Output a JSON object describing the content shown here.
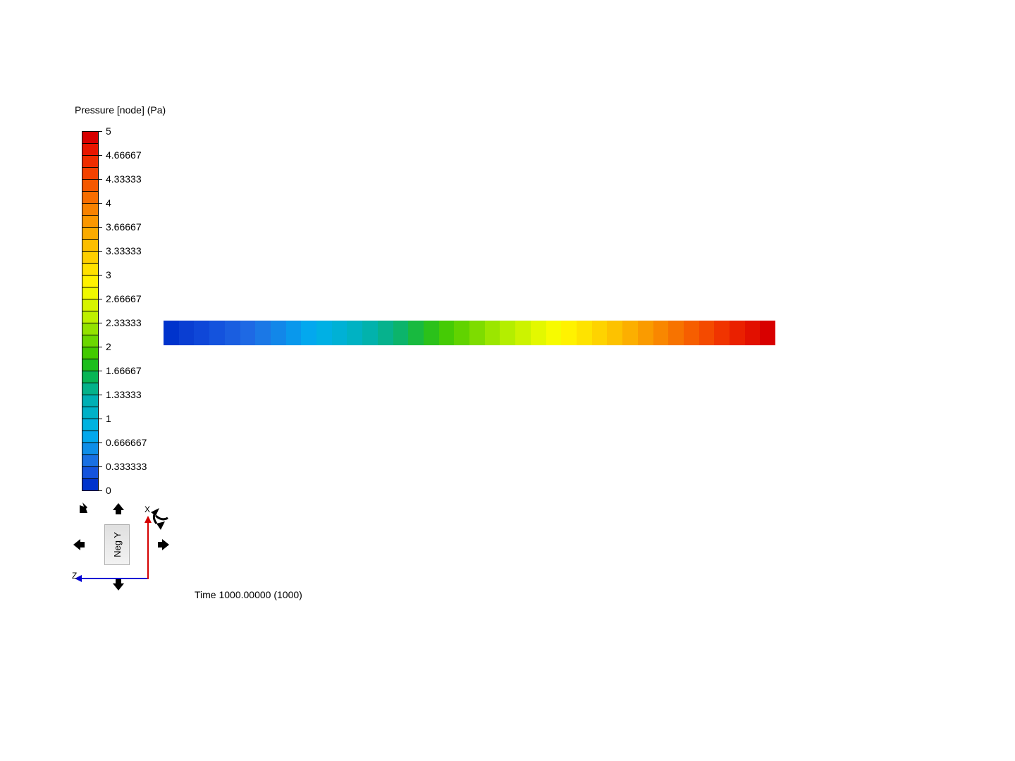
{
  "title": "Pressure [node] (Pa)",
  "legend": {
    "cells": [
      {
        "color": "#d80000"
      },
      {
        "color": "#e81600"
      },
      {
        "color": "#ef2d00"
      },
      {
        "color": "#f44200"
      },
      {
        "color": "#f55800"
      },
      {
        "color": "#f76d00"
      },
      {
        "color": "#f88200"
      },
      {
        "color": "#fb9700"
      },
      {
        "color": "#fbab00"
      },
      {
        "color": "#fcbe00"
      },
      {
        "color": "#fecf00"
      },
      {
        "color": "#ffe100"
      },
      {
        "color": "#fff200"
      },
      {
        "color": "#eff900"
      },
      {
        "color": "#d7f400"
      },
      {
        "color": "#bef000"
      },
      {
        "color": "#93e200"
      },
      {
        "color": "#6bd700"
      },
      {
        "color": "#42ca00"
      },
      {
        "color": "#1dbe1d"
      },
      {
        "color": "#08b555"
      },
      {
        "color": "#04b28a"
      },
      {
        "color": "#00b0b4"
      },
      {
        "color": "#00b1c7"
      },
      {
        "color": "#00b2e0"
      },
      {
        "color": "#03a8ec"
      },
      {
        "color": "#0e8ee8"
      },
      {
        "color": "#1970e3"
      },
      {
        "color": "#1453dd"
      },
      {
        "color": "#0033cc"
      }
    ],
    "ticks": [
      {
        "label": "5"
      },
      {
        "label": "4.66667"
      },
      {
        "label": "4.33333"
      },
      {
        "label": "4"
      },
      {
        "label": "3.66667"
      },
      {
        "label": "3.33333"
      },
      {
        "label": "3"
      },
      {
        "label": "2.66667"
      },
      {
        "label": "2.33333"
      },
      {
        "label": "2"
      },
      {
        "label": "1.66667"
      },
      {
        "label": "1.33333"
      },
      {
        "label": "1"
      },
      {
        "label": "0.666667"
      },
      {
        "label": "0.333333"
      },
      {
        "label": "0"
      }
    ]
  },
  "strip_colors": [
    "#0033cc",
    "#0a3ed2",
    "#0f47d8",
    "#1453dd",
    "#1a5ee0",
    "#1e69e4",
    "#1b78e6",
    "#1287e9",
    "#0998ec",
    "#03a8ee",
    "#00b0e4",
    "#00b1d5",
    "#00b2c3",
    "#02b2ac",
    "#06b28d",
    "#0cb46b",
    "#18ba3f",
    "#2bc11a",
    "#45cb05",
    "#61d300",
    "#7edc00",
    "#9be600",
    "#b4ee00",
    "#ccf300",
    "#e3f800",
    "#f7fb00",
    "#fff200",
    "#fee300",
    "#fed300",
    "#fdc200",
    "#fcaf00",
    "#fa9b00",
    "#f98700",
    "#f77300",
    "#f65e00",
    "#f44a00",
    "#f03400",
    "#ea2000",
    "#e21000",
    "#d80000"
  ],
  "nav": {
    "face_label": "Neg Y",
    "x_label": "X",
    "z_label": "Z"
  },
  "time_text": "Time 1000.00000 (1000)"
}
